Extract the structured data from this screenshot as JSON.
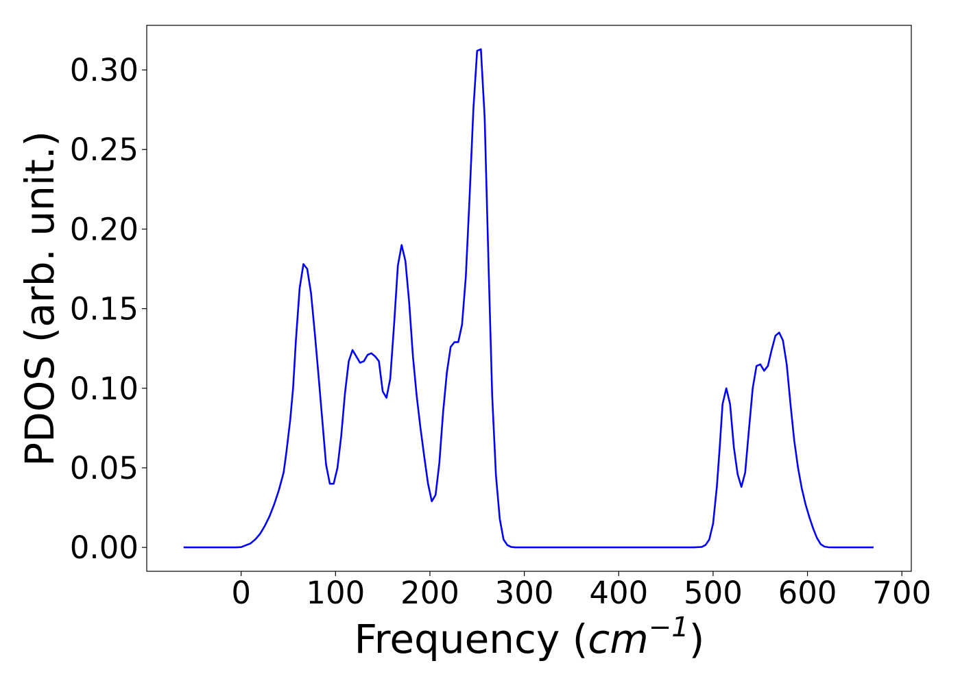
{
  "chart_data": {
    "type": "line",
    "title": "",
    "xlabel": "Frequency",
    "xlabel_unit": "cm",
    "xlabel_unit_exponent": "−1",
    "ylabel": "PDOS (arb. unit.)",
    "xlim": [
      -100,
      710
    ],
    "ylim": [
      -0.015,
      0.328
    ],
    "x_ticks": [
      0,
      100,
      200,
      300,
      400,
      500,
      600,
      700
    ],
    "x_tick_labels": [
      "0",
      "100",
      "200",
      "300",
      "400",
      "500",
      "600",
      "700"
    ],
    "y_ticks": [
      0.0,
      0.05,
      0.1,
      0.15,
      0.2,
      0.25,
      0.3
    ],
    "y_tick_labels": [
      "0.00",
      "0.05",
      "0.10",
      "0.15",
      "0.20",
      "0.25",
      "0.30"
    ],
    "grid": false,
    "legend": "none",
    "series": [
      {
        "color": "#0000ff",
        "x": [
          -61,
          -40,
          -20,
          -5,
          0,
          10,
          15,
          20,
          25,
          30,
          35,
          40,
          45,
          48,
          52,
          55,
          58,
          62,
          66,
          70,
          74,
          78,
          82,
          86,
          90,
          94,
          98,
          102,
          106,
          110,
          114,
          118,
          122,
          126,
          130,
          134,
          138,
          142,
          146,
          150,
          154,
          158,
          162,
          166,
          170,
          174,
          178,
          182,
          186,
          190,
          194,
          198,
          202,
          206,
          210,
          214,
          218,
          222,
          226,
          230,
          234,
          238,
          242,
          246,
          250,
          254,
          258,
          262,
          266,
          270,
          274,
          278,
          282,
          286,
          290,
          300,
          350,
          400,
          450,
          480,
          488,
          492,
          496,
          500,
          504,
          507,
          510,
          514,
          518,
          522,
          526,
          530,
          534,
          538,
          542,
          546,
          550,
          554,
          558,
          562,
          566,
          570,
          574,
          578,
          582,
          586,
          590,
          594,
          598,
          602,
          606,
          610,
          614,
          618,
          622,
          630,
          650,
          670
        ],
        "y": [
          0.0,
          0.0,
          0.0,
          0.0,
          0.0002,
          0.0025,
          0.005,
          0.0085,
          0.0135,
          0.0195,
          0.027,
          0.036,
          0.047,
          0.06,
          0.08,
          0.1,
          0.13,
          0.163,
          0.178,
          0.175,
          0.16,
          0.135,
          0.108,
          0.08,
          0.052,
          0.04,
          0.04,
          0.05,
          0.07,
          0.097,
          0.117,
          0.124,
          0.12,
          0.116,
          0.117,
          0.121,
          0.122,
          0.12,
          0.117,
          0.098,
          0.094,
          0.106,
          0.14,
          0.177,
          0.19,
          0.18,
          0.154,
          0.12,
          0.095,
          0.075,
          0.057,
          0.04,
          0.029,
          0.033,
          0.053,
          0.085,
          0.11,
          0.126,
          0.129,
          0.129,
          0.14,
          0.17,
          0.22,
          0.275,
          0.312,
          0.313,
          0.27,
          0.18,
          0.095,
          0.045,
          0.018,
          0.005,
          0.0015,
          0.0003,
          0.0,
          0.0,
          0.0,
          0.0,
          0.0,
          0.0,
          0.0003,
          0.0015,
          0.005,
          0.015,
          0.038,
          0.063,
          0.09,
          0.1,
          0.09,
          0.063,
          0.046,
          0.038,
          0.047,
          0.074,
          0.1,
          0.114,
          0.115,
          0.111,
          0.114,
          0.124,
          0.133,
          0.135,
          0.13,
          0.115,
          0.09,
          0.067,
          0.05,
          0.037,
          0.027,
          0.019,
          0.012,
          0.006,
          0.002,
          0.0005,
          0.0001,
          0.0,
          0.0,
          0.0
        ]
      }
    ]
  }
}
